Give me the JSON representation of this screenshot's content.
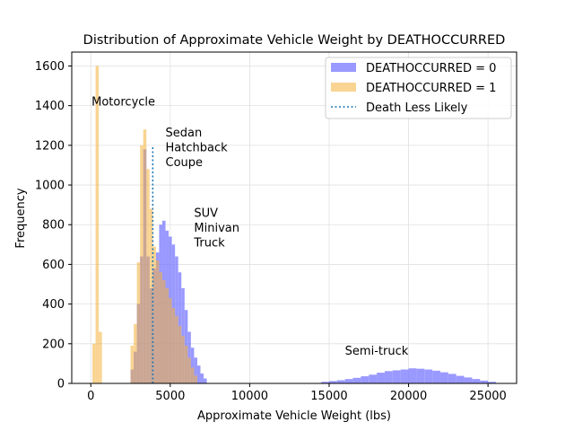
{
  "chart_data": {
    "type": "bar",
    "title": "Distribution of Approximate Vehicle Weight by DEATHOCCURRED",
    "xlabel": "Approximate Vehicle Weight (lbs)",
    "ylabel": "Frequency",
    "xlim": [
      -1200,
      26800
    ],
    "ylim": [
      0,
      1670
    ],
    "xticks": [
      0,
      5000,
      10000,
      15000,
      20000,
      25000
    ],
    "xtick_labels": [
      "0",
      "5000",
      "10000",
      "15000",
      "20000",
      "25000"
    ],
    "yticks": [
      0,
      200,
      400,
      600,
      800,
      1000,
      1200,
      1400,
      1600
    ],
    "ytick_labels": [
      "0",
      "200",
      "400",
      "600",
      "800",
      "1000",
      "1200",
      "1400",
      "1600"
    ],
    "grid": true,
    "legend_position": "top-right",
    "series": [
      {
        "name": "DEATHOCCURRED = 0",
        "color": "#7777ff",
        "bins": [
          [
            2500,
            2700,
            70
          ],
          [
            2700,
            2900,
            160
          ],
          [
            2900,
            3100,
            400
          ],
          [
            3100,
            3300,
            640
          ],
          [
            3300,
            3500,
            1180
          ],
          [
            3500,
            3700,
            640
          ],
          [
            3700,
            3900,
            480
          ],
          [
            3900,
            4100,
            580
          ],
          [
            4100,
            4300,
            660
          ],
          [
            4300,
            4500,
            800
          ],
          [
            4500,
            4700,
            820
          ],
          [
            4700,
            4900,
            770
          ],
          [
            4900,
            5100,
            740
          ],
          [
            5100,
            5300,
            700
          ],
          [
            5300,
            5500,
            640
          ],
          [
            5500,
            5700,
            560
          ],
          [
            5700,
            5900,
            480
          ],
          [
            5900,
            6100,
            370
          ],
          [
            6100,
            6300,
            260
          ],
          [
            6300,
            6500,
            180
          ],
          [
            6500,
            6700,
            130
          ],
          [
            6700,
            6900,
            90
          ],
          [
            6900,
            7100,
            50
          ],
          [
            7100,
            7300,
            25
          ],
          [
            14500,
            15000,
            8
          ],
          [
            15000,
            15500,
            12
          ],
          [
            15500,
            16000,
            16
          ],
          [
            16000,
            16500,
            22
          ],
          [
            16500,
            17000,
            28
          ],
          [
            17000,
            17500,
            36
          ],
          [
            17500,
            18000,
            44
          ],
          [
            18000,
            18500,
            54
          ],
          [
            18500,
            19000,
            62
          ],
          [
            19000,
            19500,
            66
          ],
          [
            19500,
            20000,
            70
          ],
          [
            20000,
            20500,
            76
          ],
          [
            20500,
            21000,
            74
          ],
          [
            21000,
            21500,
            70
          ],
          [
            21500,
            22000,
            64
          ],
          [
            22000,
            22500,
            56
          ],
          [
            22500,
            23000,
            48
          ],
          [
            23000,
            23500,
            38
          ],
          [
            23500,
            24000,
            30
          ],
          [
            24000,
            24500,
            22
          ],
          [
            24500,
            25000,
            14
          ],
          [
            25000,
            25500,
            8
          ]
        ]
      },
      {
        "name": "DEATHOCCURRED = 1",
        "color": "#f5b13a",
        "bins": [
          [
            100,
            300,
            200
          ],
          [
            300,
            500,
            1600
          ],
          [
            500,
            700,
            260
          ],
          [
            2500,
            2700,
            190
          ],
          [
            2700,
            2900,
            300
          ],
          [
            2900,
            3100,
            610
          ],
          [
            3100,
            3300,
            1200
          ],
          [
            3300,
            3500,
            1280
          ],
          [
            3500,
            3700,
            1080
          ],
          [
            3700,
            3900,
            880
          ],
          [
            3900,
            4100,
            690
          ],
          [
            4100,
            4300,
            620
          ],
          [
            4300,
            4500,
            560
          ],
          [
            4500,
            4700,
            520
          ],
          [
            4700,
            4900,
            480
          ],
          [
            4900,
            5100,
            430
          ],
          [
            5100,
            5300,
            380
          ],
          [
            5300,
            5500,
            340
          ],
          [
            5500,
            5700,
            290
          ],
          [
            5700,
            5900,
            240
          ],
          [
            5900,
            6100,
            190
          ],
          [
            6100,
            6300,
            130
          ],
          [
            6300,
            6500,
            80
          ],
          [
            6500,
            6700,
            40
          ]
        ]
      }
    ],
    "reference_line": {
      "name": "Death Less Likely",
      "x": 3900,
      "y_top": 1190,
      "color": "#1f77b4"
    },
    "annotations": [
      {
        "lines": [
          "Motorcycle"
        ],
        "x": 50,
        "y": 1400
      },
      {
        "lines": [
          "Sedan",
          "Hatchback",
          "Coupe"
        ],
        "x": 4700,
        "y": 1245
      },
      {
        "lines": [
          "SUV",
          "Minivan",
          "Truck"
        ],
        "x": 6500,
        "y": 840
      },
      {
        "lines": [
          "Semi-truck"
        ],
        "x": 16000,
        "y": 145
      }
    ]
  }
}
